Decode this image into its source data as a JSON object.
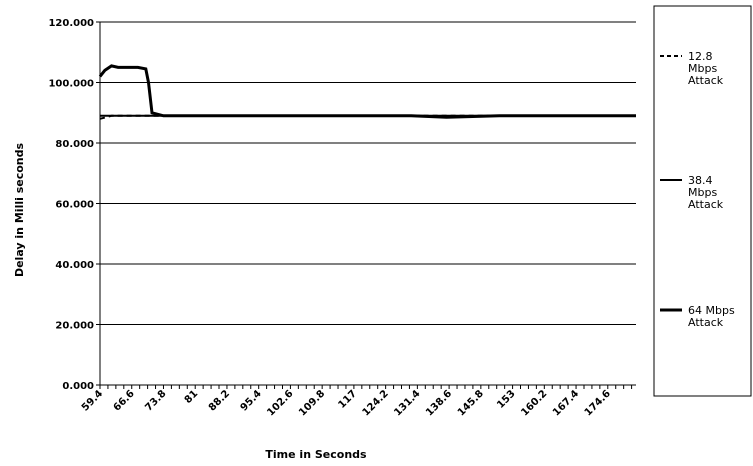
{
  "chart_data": {
    "type": "line",
    "title": "",
    "xlabel": "Time in Seconds",
    "ylabel": "Delay in Milli seconds",
    "xlim": [
      59.4,
      181.0
    ],
    "ylim": [
      0,
      120
    ],
    "y_ticks": [
      "0.000",
      "20.000",
      "40.000",
      "60.000",
      "80.000",
      "100.000",
      "120.000"
    ],
    "x_tick_labels": [
      "59.4",
      "66.6",
      "73.8",
      "81",
      "88.2",
      "95.4",
      "102.6",
      "109.8",
      "117",
      "124.2",
      "131.4",
      "138.6",
      "145.8",
      "153",
      "160.2",
      "167.4",
      "174.6"
    ],
    "grid": "horizontal",
    "legend_position": "right",
    "series": [
      {
        "name": "12.8 Mbps Attack",
        "legend_lines": [
          "12.8",
          "Mbps",
          "Attack"
        ],
        "style": "dashed",
        "x": [
          59.4,
          62,
          66.6,
          70,
          73.8,
          90,
          120,
          150,
          181
        ],
        "y": [
          88,
          89,
          89,
          89,
          89,
          89,
          89,
          89,
          89
        ]
      },
      {
        "name": "38.4 Mbps Attack",
        "legend_lines": [
          "38.4",
          "Mbps",
          "Attack"
        ],
        "style": "solid",
        "x": [
          59.4,
          73.8,
          100,
          130,
          160,
          181
        ],
        "y": [
          89,
          89,
          89,
          89,
          89,
          89
        ]
      },
      {
        "name": "64 Mbps Attack",
        "legend_lines": [
          "64 Mbps",
          "Attack"
        ],
        "style": "solid",
        "x": [
          59.4,
          60.5,
          62,
          63.5,
          66.6,
          68,
          69.8,
          70.4,
          71.2,
          73.8,
          100,
          130,
          138,
          150,
          170,
          181
        ],
        "y": [
          102,
          104,
          105.5,
          105,
          105,
          105,
          104.5,
          100,
          90,
          89,
          89,
          89,
          88.5,
          89,
          89,
          89
        ]
      }
    ]
  }
}
